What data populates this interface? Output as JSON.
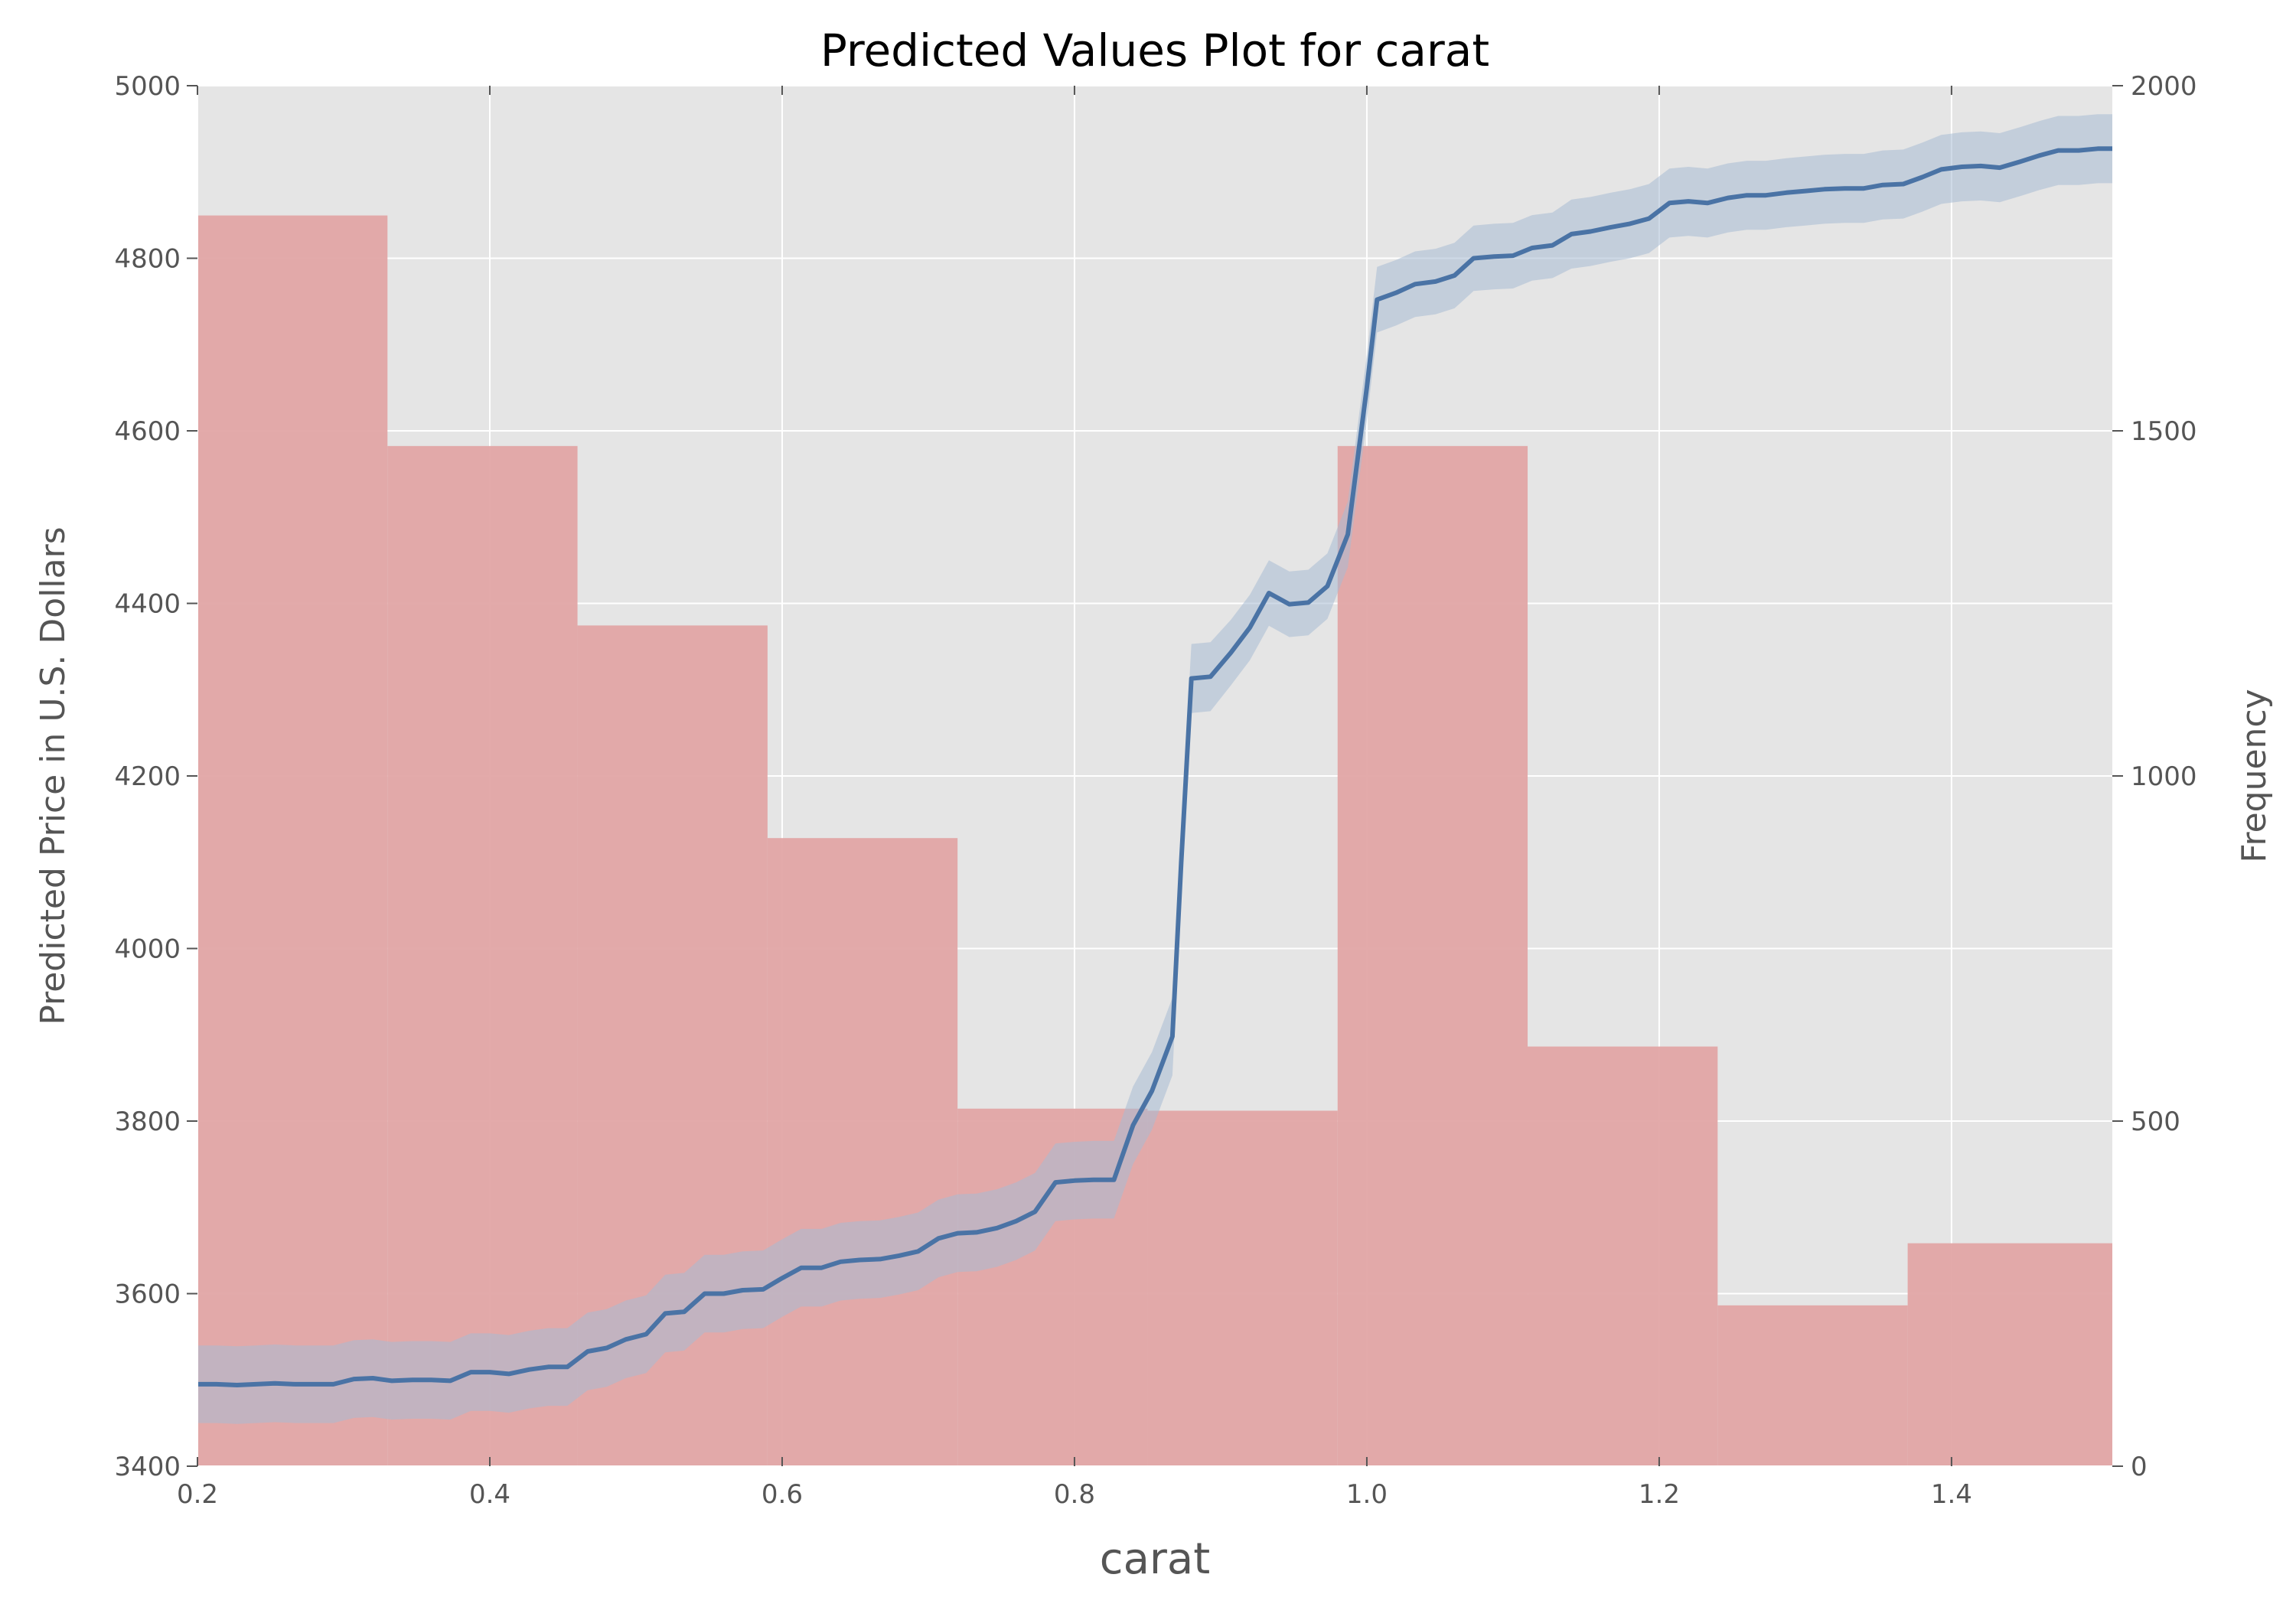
{
  "chart_data": {
    "type": "line+histogram",
    "title": "Predicted Values Plot for carat",
    "xlabel": "carat",
    "ylabel": "Predicted Price in U.S. Dollars",
    "ylabel_right": "Frequency",
    "xlim": [
      0.2,
      1.51
    ],
    "ylim": [
      3400,
      5000
    ],
    "ylim_right": [
      0,
      2000
    ],
    "grid": true,
    "x_ticks": [
      0.2,
      0.4,
      0.6,
      0.8,
      1.0,
      1.2,
      1.4
    ],
    "x_tick_labels": [
      "0.2",
      "0.4",
      "0.6",
      "0.8",
      "1.0",
      "1.2",
      "1.4"
    ],
    "y_ticks": [
      3400,
      3600,
      3800,
      4000,
      4200,
      4400,
      4600,
      4800,
      5000
    ],
    "y_tick_labels": [
      "3400",
      "3600",
      "3800",
      "4000",
      "4200",
      "4400",
      "4600",
      "4800",
      "5000"
    ],
    "y_right_ticks": [
      0,
      500,
      1000,
      1500,
      2000
    ],
    "y_right_tick_labels": [
      "0",
      "500",
      "1000",
      "1500",
      "2000"
    ],
    "histogram": {
      "name": "Frequency",
      "color": "#e2a5a5",
      "bins": [
        {
          "start": 0.2,
          "end": 0.33,
          "count": 1812
        },
        {
          "start": 0.33,
          "end": 0.46,
          "count": 1478
        },
        {
          "start": 0.46,
          "end": 0.59,
          "count": 1218
        },
        {
          "start": 0.59,
          "end": 0.72,
          "count": 910
        },
        {
          "start": 0.72,
          "end": 0.85,
          "count": 518
        },
        {
          "start": 0.85,
          "end": 0.98,
          "count": 515
        },
        {
          "start": 0.98,
          "end": 1.11,
          "count": 1478
        },
        {
          "start": 1.11,
          "end": 1.24,
          "count": 608
        },
        {
          "start": 1.24,
          "end": 1.37,
          "count": 233
        },
        {
          "start": 1.37,
          "end": 1.51,
          "count": 323
        }
      ]
    },
    "series": [
      {
        "name": "Predicted Price",
        "color": "#4a73a5",
        "band_color": "#a8bcd4",
        "x": [
          0.2,
          0.213,
          0.227,
          0.24,
          0.253,
          0.267,
          0.28,
          0.293,
          0.307,
          0.32,
          0.333,
          0.347,
          0.36,
          0.373,
          0.387,
          0.4,
          0.413,
          0.427,
          0.44,
          0.453,
          0.467,
          0.48,
          0.493,
          0.507,
          0.52,
          0.533,
          0.547,
          0.56,
          0.573,
          0.587,
          0.6,
          0.613,
          0.627,
          0.64,
          0.653,
          0.667,
          0.68,
          0.693,
          0.707,
          0.72,
          0.733,
          0.747,
          0.76,
          0.773,
          0.787,
          0.8,
          0.813,
          0.827,
          0.84,
          0.853,
          0.867,
          0.873,
          0.88,
          0.893,
          0.907,
          0.92,
          0.933,
          0.947,
          0.96,
          0.973,
          0.987,
          1.0,
          1.007,
          1.02,
          1.033,
          1.047,
          1.06,
          1.073,
          1.087,
          1.1,
          1.113,
          1.127,
          1.14,
          1.153,
          1.167,
          1.18,
          1.193,
          1.207,
          1.22,
          1.233,
          1.247,
          1.26,
          1.273,
          1.287,
          1.3,
          1.313,
          1.327,
          1.34,
          1.353,
          1.367,
          1.38,
          1.393,
          1.407,
          1.42,
          1.433,
          1.447,
          1.46,
          1.473,
          1.487,
          1.5,
          1.51
        ],
        "y": [
          3495,
          3495,
          3494,
          3495,
          3496,
          3495,
          3495,
          3495,
          3501,
          3502,
          3499,
          3500,
          3500,
          3499,
          3509,
          3509,
          3507,
          3512,
          3515,
          3515,
          3533,
          3537,
          3547,
          3553,
          3577,
          3579,
          3600,
          3600,
          3604,
          3605,
          3618,
          3630,
          3630,
          3637,
          3639,
          3640,
          3644,
          3649,
          3664,
          3670,
          3671,
          3676,
          3684,
          3695,
          3729,
          3731,
          3732,
          3732,
          3795,
          3835,
          3898,
          4100,
          4313,
          4315,
          4343,
          4372,
          4412,
          4399,
          4401,
          4420,
          4480,
          4650,
          4752,
          4760,
          4770,
          4773,
          4780,
          4800,
          4802,
          4803,
          4812,
          4815,
          4828,
          4831,
          4836,
          4840,
          4846,
          4864,
          4866,
          4864,
          4870,
          4873,
          4873,
          4876,
          4878,
          4880,
          4881,
          4881,
          4885,
          4886,
          4894,
          4903,
          4906,
          4907,
          4905,
          4912,
          4919,
          4925,
          4925,
          4927,
          4927
        ],
        "ci_halfwidth": [
          45,
          45,
          45,
          45,
          45,
          45,
          45,
          45,
          45,
          45,
          45,
          45,
          45,
          45,
          45,
          45,
          45,
          45,
          45,
          45,
          45,
          45,
          45,
          45,
          45,
          45,
          45,
          45,
          45,
          45,
          45,
          45,
          45,
          45,
          45,
          45,
          45,
          45,
          45,
          45,
          45,
          45,
          45,
          45,
          45,
          45,
          45,
          45,
          45,
          45,
          45,
          42,
          40,
          40,
          38,
          38,
          38,
          38,
          38,
          38,
          38,
          38,
          38,
          38,
          38,
          38,
          38,
          38,
          38,
          38,
          38,
          38,
          40,
          40,
          40,
          40,
          40,
          40,
          40,
          40,
          40,
          40,
          40,
          40,
          40,
          40,
          40,
          40,
          40,
          40,
          40,
          40,
          40,
          40,
          40,
          40,
          40,
          40,
          40,
          40,
          40
        ]
      }
    ]
  }
}
